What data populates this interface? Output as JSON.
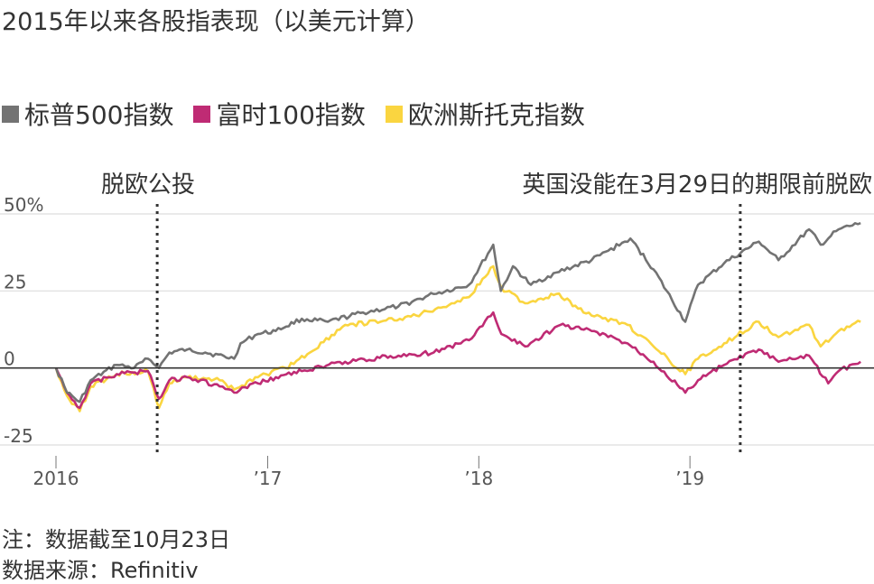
{
  "title": "2015年以来各股指表现（以美元计算）",
  "note": "注：数据截至10月23日",
  "source": "数据来源：Refinitiv",
  "colors": {
    "sp500": "#737373",
    "ftse": "#bf2b74",
    "stoxx": "#fad540",
    "zero": "#333333",
    "grid": "#dddddd",
    "event": "#333333"
  },
  "chart_data": {
    "type": "line",
    "title": "2015年以来各股指表现（以美元计算）",
    "xlabel": "",
    "ylabel": "",
    "x_ticks": [
      "2016",
      "’17",
      "’18",
      "’19"
    ],
    "y_ticks": [
      "50%",
      "25",
      "0",
      "-25"
    ],
    "ylim": [
      -25,
      50
    ],
    "grid": true,
    "legend_position": "top-left",
    "annotations": [
      {
        "label": "脱欧公投",
        "date": "2016-06-24"
      },
      {
        "label": "英国没能在3月29日的期限前脱欧",
        "date": "2019-03-29"
      }
    ],
    "series": [
      {
        "name": "标普500指数",
        "color": "#737373",
        "points": [
          [
            "2016-01-01",
            0
          ],
          [
            "2016-01-20",
            -8
          ],
          [
            "2016-02-11",
            -11
          ],
          [
            "2016-03-01",
            -4
          ],
          [
            "2016-04-15",
            1
          ],
          [
            "2016-05-15",
            0
          ],
          [
            "2016-06-08",
            3
          ],
          [
            "2016-06-27",
            0
          ],
          [
            "2016-07-15",
            5
          ],
          [
            "2016-08-15",
            6
          ],
          [
            "2016-09-15",
            5
          ],
          [
            "2016-11-04",
            3
          ],
          [
            "2016-11-15",
            8
          ],
          [
            "2016-12-15",
            11
          ],
          [
            "2017-01-15",
            12
          ],
          [
            "2017-03-01",
            16
          ],
          [
            "2017-04-15",
            15
          ],
          [
            "2017-06-15",
            18
          ],
          [
            "2017-08-15",
            20
          ],
          [
            "2017-10-15",
            24
          ],
          [
            "2017-12-15",
            27
          ],
          [
            "2018-01-26",
            40
          ],
          [
            "2018-02-08",
            25
          ],
          [
            "2018-03-01",
            33
          ],
          [
            "2018-04-01",
            27
          ],
          [
            "2018-05-15",
            31
          ],
          [
            "2018-07-15",
            35
          ],
          [
            "2018-09-20",
            42
          ],
          [
            "2018-10-30",
            32
          ],
          [
            "2018-12-24",
            15
          ],
          [
            "2019-01-15",
            27
          ],
          [
            "2019-03-01",
            34
          ],
          [
            "2019-04-30",
            41
          ],
          [
            "2019-06-03",
            35
          ],
          [
            "2019-07-26",
            45
          ],
          [
            "2019-08-15",
            40
          ],
          [
            "2019-09-15",
            45
          ],
          [
            "2019-10-23",
            47
          ]
        ]
      },
      {
        "name": "富时100指数",
        "color": "#bf2b74",
        "points": [
          [
            "2016-01-01",
            0
          ],
          [
            "2016-01-20",
            -8
          ],
          [
            "2016-02-11",
            -13
          ],
          [
            "2016-03-01",
            -5
          ],
          [
            "2016-04-15",
            -2
          ],
          [
            "2016-06-08",
            -1
          ],
          [
            "2016-06-27",
            -10
          ],
          [
            "2016-07-15",
            -4
          ],
          [
            "2016-08-15",
            -3
          ],
          [
            "2016-10-10",
            -6
          ],
          [
            "2016-11-04",
            -8
          ],
          [
            "2016-12-15",
            -5
          ],
          [
            "2017-01-15",
            -3
          ],
          [
            "2017-03-01",
            -1
          ],
          [
            "2017-05-15",
            2
          ],
          [
            "2017-08-15",
            4
          ],
          [
            "2017-10-15",
            5
          ],
          [
            "2017-12-15",
            9
          ],
          [
            "2018-01-26",
            18
          ],
          [
            "2018-02-09",
            11
          ],
          [
            "2018-03-22",
            7
          ],
          [
            "2018-05-22",
            14
          ],
          [
            "2018-07-15",
            12
          ],
          [
            "2018-09-15",
            8
          ],
          [
            "2018-10-30",
            2
          ],
          [
            "2018-12-24",
            -8
          ],
          [
            "2019-01-15",
            -4
          ],
          [
            "2019-03-01",
            1
          ],
          [
            "2019-04-30",
            6
          ],
          [
            "2019-06-03",
            2
          ],
          [
            "2019-07-26",
            4
          ],
          [
            "2019-08-28",
            -5
          ],
          [
            "2019-09-15",
            -1
          ],
          [
            "2019-10-23",
            2
          ]
        ]
      },
      {
        "name": "欧洲斯托克指数",
        "color": "#fad540",
        "points": [
          [
            "2016-01-01",
            0
          ],
          [
            "2016-01-20",
            -9
          ],
          [
            "2016-02-11",
            -14
          ],
          [
            "2016-03-01",
            -6
          ],
          [
            "2016-04-15",
            -2
          ],
          [
            "2016-06-08",
            -1
          ],
          [
            "2016-06-27",
            -13
          ],
          [
            "2016-07-15",
            -5
          ],
          [
            "2016-08-15",
            -3
          ],
          [
            "2016-10-10",
            -4
          ],
          [
            "2016-11-04",
            -7
          ],
          [
            "2016-12-15",
            -3
          ],
          [
            "2017-02-01",
            0
          ],
          [
            "2017-03-15",
            5
          ],
          [
            "2017-05-15",
            14
          ],
          [
            "2017-07-15",
            15
          ],
          [
            "2017-09-15",
            17
          ],
          [
            "2017-11-15",
            21
          ],
          [
            "2017-12-15",
            23
          ],
          [
            "2018-01-26",
            33
          ],
          [
            "2018-02-09",
            26
          ],
          [
            "2018-03-22",
            21
          ],
          [
            "2018-05-15",
            24
          ],
          [
            "2018-07-15",
            17
          ],
          [
            "2018-09-15",
            14
          ],
          [
            "2018-10-30",
            7
          ],
          [
            "2018-12-24",
            -2
          ],
          [
            "2019-01-15",
            3
          ],
          [
            "2019-03-01",
            8
          ],
          [
            "2019-04-30",
            15
          ],
          [
            "2019-06-03",
            10
          ],
          [
            "2019-07-26",
            14
          ],
          [
            "2019-08-15",
            7
          ],
          [
            "2019-09-15",
            12
          ],
          [
            "2019-10-23",
            15
          ]
        ]
      }
    ]
  },
  "legend": [
    {
      "label": "标普500指数",
      "color": "#737373"
    },
    {
      "label": "富时100指数",
      "color": "#bf2b74"
    },
    {
      "label": "欧洲斯托克指数",
      "color": "#fad540"
    }
  ]
}
